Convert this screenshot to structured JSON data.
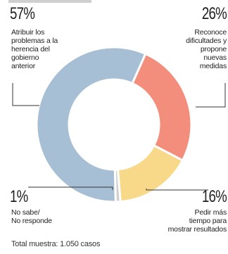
{
  "chart_data": {
    "type": "pie",
    "donut": true,
    "slices": [
      {
        "pct_label": "57%",
        "value": 57,
        "label_lines": [
          "Atribuir los",
          "problemas a la",
          "herencia del",
          "gobierno",
          "anterior"
        ],
        "color": "#a7bfd4"
      },
      {
        "pct_label": "26%",
        "value": 26,
        "label_lines": [
          "Reconoce",
          "dificultades y",
          "propone",
          "nuevas",
          "medidas"
        ],
        "color": "#f28e7b"
      },
      {
        "pct_label": "16%",
        "value": 16,
        "label_lines": [
          "Pedir más",
          "tiempo para",
          "mostrar resultados"
        ],
        "color": "#f8d98a"
      },
      {
        "pct_label": "1%",
        "value": 1,
        "label_lines": [
          "No sabe/",
          "No responde"
        ],
        "color": "#cfcfcf"
      }
    ],
    "footer": "Total muestra: 1.050 casos"
  }
}
